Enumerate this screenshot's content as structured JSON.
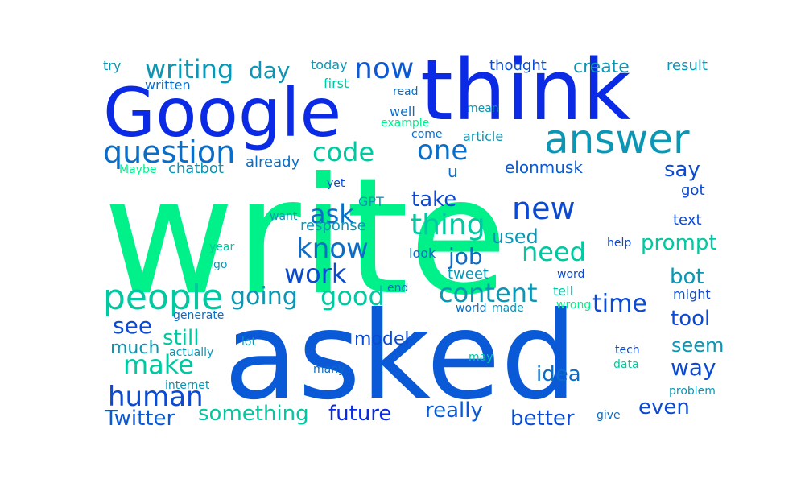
{
  "words": [
    {
      "text": "write",
      "color": "#00f08a"
    },
    {
      "text": "asked",
      "color": "#0a5ad8"
    },
    {
      "text": "think",
      "color": "#0a2ae6"
    },
    {
      "text": "Google",
      "color": "#0a2ae6"
    },
    {
      "text": "answer",
      "color": "#0a96b4"
    },
    {
      "text": "people",
      "color": "#00c8a0"
    },
    {
      "text": "question",
      "color": "#0a6ec8"
    },
    {
      "text": "thing",
      "color": "#00c8a0"
    },
    {
      "text": "new",
      "color": "#0a4ad4"
    },
    {
      "text": "now",
      "color": "#0a5ad8"
    },
    {
      "text": "writing",
      "color": "#0a96b4"
    },
    {
      "text": "human",
      "color": "#0a4ad4"
    },
    {
      "text": "make",
      "color": "#00c8a0"
    },
    {
      "text": "content",
      "color": "#0a96b4"
    },
    {
      "text": "code",
      "color": "#00c8a0"
    },
    {
      "text": "one",
      "color": "#0a6ec8"
    },
    {
      "text": "know",
      "color": "#0a6ec8"
    },
    {
      "text": "work",
      "color": "#0a4ad4"
    },
    {
      "text": "good",
      "color": "#00c8a0"
    },
    {
      "text": "going",
      "color": "#0a96b4"
    },
    {
      "text": "need",
      "color": "#00c8a0"
    },
    {
      "text": "ask",
      "color": "#0a6ec8"
    },
    {
      "text": "day",
      "color": "#0a96b4"
    },
    {
      "text": "time",
      "color": "#0a4ad4"
    },
    {
      "text": "see",
      "color": "#0a4ad4"
    },
    {
      "text": "job",
      "color": "#0a6ec8"
    },
    {
      "text": "Twitter",
      "color": "#0a5ad8"
    },
    {
      "text": "something",
      "color": "#00c8a0"
    },
    {
      "text": "future",
      "color": "#0a2ae6"
    },
    {
      "text": "really",
      "color": "#0a5ad8"
    },
    {
      "text": "better",
      "color": "#0a4ad4"
    },
    {
      "text": "even",
      "color": "#0a4ad4"
    },
    {
      "text": "way",
      "color": "#0a4ad4"
    },
    {
      "text": "idea",
      "color": "#0a6ec8"
    },
    {
      "text": "prompt",
      "color": "#00c8a0"
    },
    {
      "text": "tool",
      "color": "#0a4ad4"
    },
    {
      "text": "bot",
      "color": "#0a96b4"
    },
    {
      "text": "seem",
      "color": "#0a96b4"
    },
    {
      "text": "take",
      "color": "#0a4ad4"
    },
    {
      "text": "used",
      "color": "#0a96b4"
    },
    {
      "text": "still",
      "color": "#00c8a0"
    },
    {
      "text": "much",
      "color": "#0a96b4"
    },
    {
      "text": "model",
      "color": "#0a4ad4"
    },
    {
      "text": "say",
      "color": "#0a4ad4"
    },
    {
      "text": "elonmusk",
      "color": "#0a5ad8"
    },
    {
      "text": "create",
      "color": "#0a96b4"
    },
    {
      "text": "chatbot",
      "color": "#0a96b4"
    },
    {
      "text": "already",
      "color": "#0a6ec8"
    },
    {
      "text": "response",
      "color": "#0a96b4"
    },
    {
      "text": "tweet",
      "color": "#0a96b4"
    },
    {
      "text": "u",
      "color": "#0a6ec8"
    },
    {
      "text": "got",
      "color": "#0a4ad4"
    },
    {
      "text": "text",
      "color": "#0a4ad4"
    },
    {
      "text": "might",
      "color": "#0a4ad4"
    },
    {
      "text": "result",
      "color": "#0a96b4"
    },
    {
      "text": "thought",
      "color": "#0a4ad4"
    },
    {
      "text": "today",
      "color": "#0a96b4"
    },
    {
      "text": "first",
      "color": "#00c8a0"
    },
    {
      "text": "try",
      "color": "#0a96b4"
    },
    {
      "text": "written",
      "color": "#0a6ec8"
    },
    {
      "text": "read",
      "color": "#0a6ec8"
    },
    {
      "text": "well",
      "color": "#0a6ec8"
    },
    {
      "text": "mean",
      "color": "#0a96b4"
    },
    {
      "text": "example",
      "color": "#00f08a"
    },
    {
      "text": "come",
      "color": "#0a6ec8"
    },
    {
      "text": "article",
      "color": "#0a96b4"
    },
    {
      "text": "Maybe",
      "color": "#00f08a"
    },
    {
      "text": "GPT",
      "color": "#0a96b4"
    },
    {
      "text": "yet",
      "color": "#0a4ad4"
    },
    {
      "text": "want",
      "color": "#0a96b4"
    },
    {
      "text": "look",
      "color": "#0a6ec8"
    },
    {
      "text": "year",
      "color": "#00c8a0"
    },
    {
      "text": "go",
      "color": "#0a96b4"
    },
    {
      "text": "end",
      "color": "#0a6ec8"
    },
    {
      "text": "tell",
      "color": "#00c8a0"
    },
    {
      "text": "word",
      "color": "#0a4ad4"
    },
    {
      "text": "help",
      "color": "#0a4ad4"
    },
    {
      "text": "world",
      "color": "#0a6ec8"
    },
    {
      "text": "made",
      "color": "#0a96b4"
    },
    {
      "text": "wrong",
      "color": "#00f08a"
    },
    {
      "text": "generate",
      "color": "#0a6ec8"
    },
    {
      "text": "actually",
      "color": "#0a96b4"
    },
    {
      "text": "lot",
      "color": "#0a96b4"
    },
    {
      "text": "may",
      "color": "#00c8a0"
    },
    {
      "text": "tech",
      "color": "#0a4ad4"
    },
    {
      "text": "many",
      "color": "#0a6ec8"
    },
    {
      "text": "data",
      "color": "#00c8a0"
    },
    {
      "text": "internet",
      "color": "#0a96b4"
    },
    {
      "text": "problem",
      "color": "#0a96b4"
    },
    {
      "text": "give",
      "color": "#0a6ec8"
    }
  ]
}
